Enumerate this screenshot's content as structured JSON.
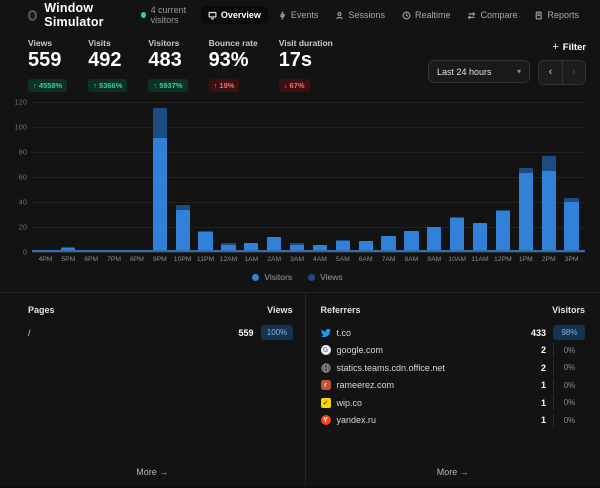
{
  "header": {
    "title": "Window Simulator",
    "current_visitors": "4 current visitors",
    "nav": [
      {
        "label": "Overview",
        "icon": "monitor-icon",
        "active": true
      },
      {
        "label": "Events",
        "icon": "lightning-icon",
        "active": false
      },
      {
        "label": "Sessions",
        "icon": "user-icon",
        "active": false
      },
      {
        "label": "Realtime",
        "icon": "clock-icon",
        "active": false
      },
      {
        "label": "Compare",
        "icon": "compare-icon",
        "active": false
      },
      {
        "label": "Reports",
        "icon": "document-icon",
        "active": false
      }
    ]
  },
  "toolbar": {
    "filter_label": "Filter",
    "filter_plus": "+",
    "date_range": "Last 24 hours",
    "chevron": "▾",
    "prev": "‹",
    "next": "›"
  },
  "stats": [
    {
      "label": "Views",
      "value": "559",
      "delta": "4558%",
      "dir": "up",
      "tone": "green"
    },
    {
      "label": "Visits",
      "value": "492",
      "delta": "5366%",
      "dir": "up",
      "tone": "green"
    },
    {
      "label": "Visitors",
      "value": "483",
      "delta": "5937%",
      "dir": "up",
      "tone": "green"
    },
    {
      "label": "Bounce rate",
      "value": "93%",
      "delta": "19%",
      "dir": "up",
      "tone": "red"
    },
    {
      "label": "Visit duration",
      "value": "17s",
      "delta": "67%",
      "dir": "down",
      "tone": "red"
    }
  ],
  "chart_data": {
    "type": "bar",
    "title": "",
    "x": [
      "4PM",
      "5PM",
      "6PM",
      "7PM",
      "8PM",
      "9PM",
      "10PM",
      "11PM",
      "12AM",
      "1AM",
      "2AM",
      "3AM",
      "4AM",
      "5AM",
      "6AM",
      "7AM",
      "8AM",
      "9AM",
      "10AM",
      "11AM",
      "12PM",
      "1PM",
      "2PM",
      "3PM"
    ],
    "series": [
      {
        "name": "Visitors",
        "color": "#3181d8",
        "values": [
          0,
          3,
          0,
          0,
          1,
          91,
          34,
          16,
          6,
          7,
          12,
          6,
          6,
          9,
          9,
          13,
          17,
          20,
          27,
          23,
          33,
          63,
          65,
          40
        ]
      },
      {
        "name": "Views",
        "color": "#1c4c80",
        "values": [
          0,
          4,
          0,
          0,
          1,
          115,
          38,
          17,
          7,
          7,
          12,
          7,
          6,
          10,
          9,
          13,
          17,
          20,
          28,
          23,
          34,
          67,
          77,
          43
        ]
      }
    ],
    "ylim": [
      0,
      120
    ],
    "yticks": [
      0,
      20,
      40,
      60,
      80,
      100,
      120
    ],
    "grid": true,
    "legend_position": "bottom-center"
  },
  "pages_panel": {
    "title": "Pages",
    "value_header": "Views",
    "rows": [
      {
        "name": "/",
        "value": "559",
        "pct": "100%",
        "highlighted": true,
        "icon": null
      }
    ],
    "more_label": "More",
    "more_arrow": "→"
  },
  "referrers_panel": {
    "title": "Referrers",
    "value_header": "Visitors",
    "rows": [
      {
        "name": "t.co",
        "value": "433",
        "pct": "98%",
        "highlighted": true,
        "icon": "twitter-icon"
      },
      {
        "name": "google.com",
        "value": "2",
        "pct": "0%",
        "highlighted": false,
        "icon": "google-icon"
      },
      {
        "name": "statics.teams.cdn.office.net",
        "value": "2",
        "pct": "0%",
        "highlighted": false,
        "icon": "globe-icon"
      },
      {
        "name": "rameerez.com",
        "value": "1",
        "pct": "0%",
        "highlighted": false,
        "icon": "site-red-icon"
      },
      {
        "name": "wip.co",
        "value": "1",
        "pct": "0%",
        "highlighted": false,
        "icon": "wip-icon"
      },
      {
        "name": "yandex.ru",
        "value": "1",
        "pct": "0%",
        "highlighted": false,
        "icon": "yandex-icon"
      }
    ],
    "more_label": "More",
    "more_arrow": "→"
  },
  "colors": {
    "background": "#131313",
    "visitors_bar": "#3181d8",
    "views_bar": "#1c4c80",
    "positive": "#3ecf8e",
    "negative": "#f26c6c",
    "live_dot": "#2dd4a7",
    "pct_highlight_bg": "#173250",
    "pct_highlight_text": "#7fb2e8"
  }
}
